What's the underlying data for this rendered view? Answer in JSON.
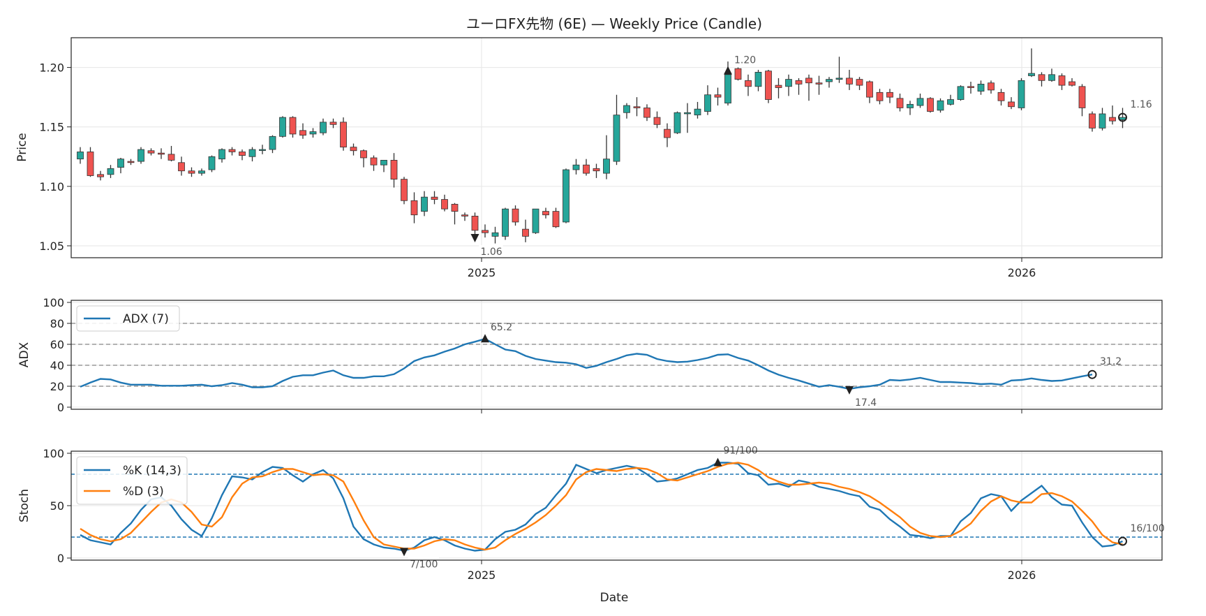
{
  "title": "ユーロFX先物 (6E) — Weekly Price (Candle)",
  "colors": {
    "up": "#26a69a",
    "down": "#ef5350",
    "adx": "#1f77b4",
    "k": "#1f77b4",
    "d": "#ff7f0e"
  },
  "chart_data": [
    {
      "type": "candlestick",
      "ylabel": "Price",
      "ylim": [
        1.04,
        1.225
      ],
      "yticks": [
        "1.05",
        "1.10",
        "1.15",
        "1.20"
      ],
      "xticks": [
        "2025",
        "2026"
      ],
      "grid": true,
      "annotations": {
        "high": "1.20",
        "low": "1.06",
        "last": "1.16"
      },
      "ohlc": [
        [
          1.123,
          1.133,
          1.119,
          1.129
        ],
        [
          1.129,
          1.133,
          1.108,
          1.109
        ],
        [
          1.11,
          1.113,
          1.105,
          1.108
        ],
        [
          1.11,
          1.118,
          1.107,
          1.115
        ],
        [
          1.116,
          1.124,
          1.111,
          1.123
        ],
        [
          1.121,
          1.123,
          1.118,
          1.12
        ],
        [
          1.121,
          1.133,
          1.119,
          1.131
        ],
        [
          1.13,
          1.132,
          1.126,
          1.128
        ],
        [
          1.128,
          1.132,
          1.123,
          1.127
        ],
        [
          1.127,
          1.134,
          1.121,
          1.122
        ],
        [
          1.12,
          1.125,
          1.109,
          1.113
        ],
        [
          1.113,
          1.116,
          1.108,
          1.111
        ],
        [
          1.111,
          1.115,
          1.109,
          1.113
        ],
        [
          1.114,
          1.126,
          1.112,
          1.125
        ],
        [
          1.123,
          1.132,
          1.12,
          1.131
        ],
        [
          1.131,
          1.133,
          1.126,
          1.129
        ],
        [
          1.129,
          1.131,
          1.122,
          1.126
        ],
        [
          1.125,
          1.133,
          1.121,
          1.131
        ],
        [
          1.131,
          1.135,
          1.127,
          1.131
        ],
        [
          1.131,
          1.143,
          1.128,
          1.142
        ],
        [
          1.142,
          1.159,
          1.141,
          1.158
        ],
        [
          1.158,
          1.159,
          1.141,
          1.144
        ],
        [
          1.147,
          1.153,
          1.14,
          1.143
        ],
        [
          1.144,
          1.149,
          1.141,
          1.146
        ],
        [
          1.145,
          1.157,
          1.143,
          1.154
        ],
        [
          1.154,
          1.157,
          1.149,
          1.152
        ],
        [
          1.154,
          1.158,
          1.13,
          1.133
        ],
        [
          1.133,
          1.136,
          1.126,
          1.13
        ],
        [
          1.13,
          1.131,
          1.116,
          1.124
        ],
        [
          1.124,
          1.126,
          1.113,
          1.118
        ],
        [
          1.118,
          1.122,
          1.112,
          1.122
        ],
        [
          1.122,
          1.128,
          1.099,
          1.106
        ],
        [
          1.106,
          1.108,
          1.085,
          1.088
        ],
        [
          1.088,
          1.095,
          1.069,
          1.076
        ],
        [
          1.079,
          1.096,
          1.075,
          1.091
        ],
        [
          1.091,
          1.096,
          1.085,
          1.089
        ],
        [
          1.089,
          1.093,
          1.079,
          1.081
        ],
        [
          1.085,
          1.086,
          1.068,
          1.079
        ],
        [
          1.076,
          1.078,
          1.071,
          1.075
        ],
        [
          1.075,
          1.078,
          1.055,
          1.063
        ],
        [
          1.063,
          1.068,
          1.057,
          1.061
        ],
        [
          1.058,
          1.066,
          1.052,
          1.061
        ],
        [
          1.058,
          1.082,
          1.055,
          1.081
        ],
        [
          1.081,
          1.084,
          1.067,
          1.07
        ],
        [
          1.064,
          1.072,
          1.053,
          1.058
        ],
        [
          1.061,
          1.081,
          1.06,
          1.081
        ],
        [
          1.079,
          1.082,
          1.073,
          1.076
        ],
        [
          1.079,
          1.082,
          1.065,
          1.066
        ],
        [
          1.07,
          1.115,
          1.069,
          1.114
        ],
        [
          1.114,
          1.123,
          1.11,
          1.118
        ],
        [
          1.118,
          1.123,
          1.109,
          1.111
        ],
        [
          1.115,
          1.119,
          1.107,
          1.113
        ],
        [
          1.111,
          1.143,
          1.106,
          1.123
        ],
        [
          1.121,
          1.177,
          1.118,
          1.16
        ],
        [
          1.162,
          1.17,
          1.157,
          1.168
        ],
        [
          1.167,
          1.175,
          1.159,
          1.166
        ],
        [
          1.166,
          1.169,
          1.155,
          1.158
        ],
        [
          1.158,
          1.163,
          1.149,
          1.152
        ],
        [
          1.148,
          1.153,
          1.133,
          1.141
        ],
        [
          1.145,
          1.163,
          1.144,
          1.162
        ],
        [
          1.161,
          1.17,
          1.145,
          1.162
        ],
        [
          1.16,
          1.171,
          1.157,
          1.165
        ],
        [
          1.163,
          1.185,
          1.16,
          1.177
        ],
        [
          1.177,
          1.183,
          1.168,
          1.175
        ],
        [
          1.17,
          1.205,
          1.168,
          1.194
        ],
        [
          1.199,
          1.2,
          1.189,
          1.19
        ],
        [
          1.189,
          1.194,
          1.176,
          1.184
        ],
        [
          1.184,
          1.198,
          1.18,
          1.196
        ],
        [
          1.197,
          1.198,
          1.17,
          1.173
        ],
        [
          1.185,
          1.191,
          1.174,
          1.183
        ],
        [
          1.184,
          1.194,
          1.176,
          1.19
        ],
        [
          1.189,
          1.191,
          1.177,
          1.186
        ],
        [
          1.191,
          1.194,
          1.172,
          1.187
        ],
        [
          1.187,
          1.193,
          1.177,
          1.186
        ],
        [
          1.188,
          1.192,
          1.183,
          1.19
        ],
        [
          1.19,
          1.209,
          1.187,
          1.191
        ],
        [
          1.191,
          1.198,
          1.181,
          1.186
        ],
        [
          1.19,
          1.192,
          1.181,
          1.185
        ],
        [
          1.188,
          1.189,
          1.17,
          1.175
        ],
        [
          1.179,
          1.182,
          1.169,
          1.172
        ],
        [
          1.179,
          1.182,
          1.17,
          1.175
        ],
        [
          1.174,
          1.178,
          1.163,
          1.166
        ],
        [
          1.166,
          1.172,
          1.16,
          1.169
        ],
        [
          1.168,
          1.178,
          1.166,
          1.174
        ],
        [
          1.174,
          1.175,
          1.162,
          1.163
        ],
        [
          1.164,
          1.174,
          1.162,
          1.172
        ],
        [
          1.169,
          1.177,
          1.168,
          1.173
        ],
        [
          1.173,
          1.185,
          1.172,
          1.184
        ],
        [
          1.184,
          1.188,
          1.178,
          1.183
        ],
        [
          1.18,
          1.189,
          1.177,
          1.186
        ],
        [
          1.187,
          1.189,
          1.178,
          1.181
        ],
        [
          1.179,
          1.182,
          1.168,
          1.172
        ],
        [
          1.171,
          1.175,
          1.165,
          1.167
        ],
        [
          1.166,
          1.191,
          1.164,
          1.189
        ],
        [
          1.193,
          1.216,
          1.192,
          1.195
        ],
        [
          1.194,
          1.196,
          1.184,
          1.189
        ],
        [
          1.189,
          1.199,
          1.188,
          1.194
        ],
        [
          1.193,
          1.195,
          1.181,
          1.185
        ],
        [
          1.188,
          1.191,
          1.184,
          1.185
        ],
        [
          1.184,
          1.186,
          1.159,
          1.166
        ],
        [
          1.161,
          1.163,
          1.146,
          1.149
        ],
        [
          1.149,
          1.166,
          1.147,
          1.161
        ],
        [
          1.158,
          1.168,
          1.152,
          1.155
        ],
        [
          1.156,
          1.166,
          1.149,
          1.158
        ]
      ]
    },
    {
      "type": "line",
      "ylabel": "ADX",
      "ylim": [
        -2,
        102
      ],
      "yticks": [
        "0",
        "20",
        "40",
        "60",
        "80",
        "100"
      ],
      "ref_lines": [
        20,
        40,
        60,
        80
      ],
      "series": [
        {
          "name": "ADX (7)",
          "values": [
            19.5,
            23.5,
            27,
            26.5,
            23.5,
            21.5,
            21.5,
            21.5,
            20.5,
            20.5,
            20.5,
            21,
            21.5,
            20,
            21,
            23,
            21.5,
            19,
            19,
            20,
            25,
            29,
            30.5,
            30.5,
            33,
            35,
            30.5,
            28,
            28,
            29.5,
            29.5,
            31.5,
            37,
            44,
            47.5,
            49.5,
            53,
            56,
            60,
            62.5,
            65.2,
            60,
            55,
            53.5,
            49,
            46,
            44.5,
            43,
            42.5,
            41,
            37.5,
            39.5,
            43,
            46,
            49.5,
            51,
            50,
            46,
            44,
            43,
            43.5,
            45,
            47,
            50,
            50.5,
            47,
            44.5,
            40,
            35,
            31,
            28,
            25.5,
            22.5,
            19.5,
            21,
            19.5,
            17.4,
            19,
            20,
            21.5,
            26,
            25.5,
            26.5,
            28,
            26,
            24,
            24,
            23.5,
            23,
            22,
            22.5,
            21.5,
            25.5,
            26,
            27.5,
            26,
            25,
            25.5,
            27.5,
            29.5,
            31.2
          ]
        }
      ],
      "annotations": {
        "max": "65.2",
        "min": "17.4",
        "last": "31.2"
      }
    },
    {
      "type": "line",
      "xlabel": "Date",
      "ylabel": "Stoch",
      "ylim": [
        -2,
        102
      ],
      "yticks": [
        "0",
        "50",
        "100"
      ],
      "xticks": [
        "2025",
        "2026"
      ],
      "ref_lines": [
        20,
        80
      ],
      "series": [
        {
          "name": "%K (14,3)",
          "values": [
            22,
            17,
            15,
            13,
            24,
            33,
            46,
            56,
            58,
            50,
            37,
            27,
            21,
            38,
            60,
            78,
            77,
            75,
            82,
            87,
            86,
            79,
            73,
            80,
            84,
            76,
            57,
            30,
            18,
            13,
            10,
            9,
            7,
            10,
            17,
            20,
            17,
            12,
            9,
            7,
            8,
            18,
            25,
            27,
            32,
            42,
            48,
            60,
            71,
            89,
            85,
            81,
            84,
            86,
            88,
            86,
            80,
            73,
            74,
            76,
            80,
            84,
            86,
            91,
            91,
            90,
            81,
            79,
            70,
            71,
            68,
            74,
            72,
            68,
            66,
            64,
            61,
            59,
            49,
            46,
            37,
            30,
            22,
            21,
            19,
            21,
            21,
            35,
            43,
            57,
            61,
            59,
            45,
            55,
            62,
            69,
            58,
            51,
            50,
            34,
            20,
            11,
            12,
            16
          ]
        },
        {
          "name": "%D (3)",
          "values": [
            28,
            22,
            18,
            16,
            18,
            24,
            34,
            44,
            53,
            56,
            53,
            44,
            32,
            30,
            39,
            58,
            71,
            77,
            78,
            82,
            85,
            85,
            82,
            79,
            80,
            79,
            73,
            55,
            36,
            20,
            13,
            11,
            9,
            9,
            12,
            16,
            18,
            17,
            13,
            10,
            8,
            10,
            17,
            23,
            28,
            34,
            41,
            50,
            60,
            75,
            82,
            85,
            84,
            83,
            85,
            86,
            85,
            81,
            75,
            74,
            77,
            80,
            83,
            87,
            90,
            91,
            89,
            84,
            77,
            73,
            70,
            70,
            71,
            72,
            71,
            68,
            66,
            63,
            59,
            53,
            46,
            39,
            30,
            24,
            21,
            20,
            21,
            26,
            33,
            45,
            54,
            59,
            55,
            53,
            53,
            61,
            62,
            59,
            54,
            45,
            35,
            22,
            15,
            13
          ]
        }
      ],
      "annotations": {
        "max": "91/100",
        "min": "7/100",
        "last": "16/100"
      }
    }
  ]
}
